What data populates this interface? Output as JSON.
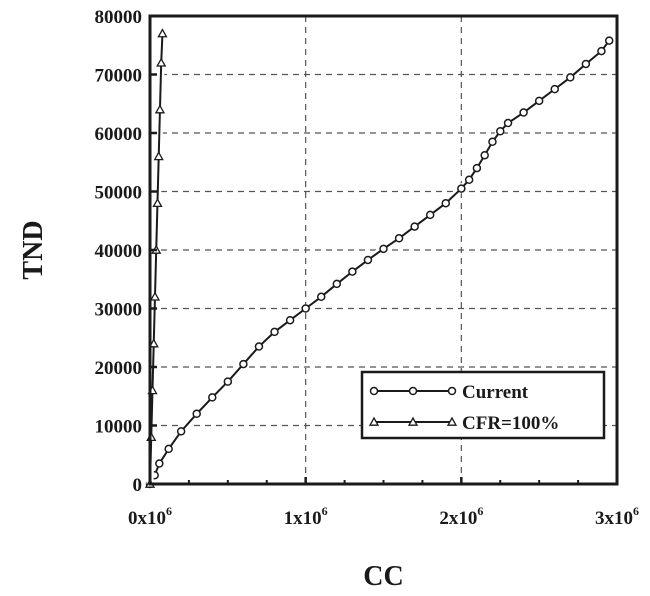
{
  "chart_data": {
    "type": "line",
    "xlabel": "CC",
    "ylabel": "TND",
    "xlim": [
      0,
      3000000
    ],
    "ylim": [
      0,
      80000
    ],
    "grid": true,
    "legend_position": "bottom-right",
    "x_ticks": [
      {
        "value": 0,
        "base": "0x10",
        "exp": "6"
      },
      {
        "value": 1000000,
        "base": "1x10",
        "exp": "6"
      },
      {
        "value": 2000000,
        "base": "2x10",
        "exp": "6"
      },
      {
        "value": 3000000,
        "base": "3x10",
        "exp": "6"
      }
    ],
    "y_ticks": [
      0,
      10000,
      20000,
      30000,
      40000,
      50000,
      60000,
      70000,
      80000
    ],
    "series": [
      {
        "name": "Current",
        "marker": "circle",
        "color": "#1a1a1a",
        "x": [
          0,
          30000,
          60000,
          120000,
          200000,
          300000,
          400000,
          500000,
          600000,
          700000,
          800000,
          900000,
          1000000,
          1100000,
          1200000,
          1300000,
          1400000,
          1500000,
          1600000,
          1700000,
          1800000,
          1900000,
          2000000,
          2050000,
          2100000,
          2150000,
          2200000,
          2250000,
          2300000,
          2400000,
          2500000,
          2600000,
          2700000,
          2800000,
          2900000,
          2950000
        ],
        "y": [
          0,
          1500,
          3500,
          6000,
          9000,
          12000,
          14800,
          17500,
          20500,
          23500,
          26000,
          28000,
          30000,
          32000,
          34200,
          36300,
          38300,
          40200,
          42000,
          44000,
          46000,
          48000,
          50500,
          52000,
          54000,
          56200,
          58500,
          60300,
          61700,
          63500,
          65500,
          67500,
          69500,
          71800,
          74000,
          75800
        ]
      },
      {
        "name": "CFR=100%",
        "marker": "triangle",
        "color": "#1a1a1a",
        "x": [
          0,
          8000,
          16000,
          24000,
          32000,
          40000,
          48000,
          56000,
          64000,
          72000,
          80000
        ],
        "y": [
          0,
          8000,
          16000,
          24000,
          32000,
          40000,
          48000,
          56000,
          64000,
          72000,
          77000
        ]
      }
    ]
  }
}
